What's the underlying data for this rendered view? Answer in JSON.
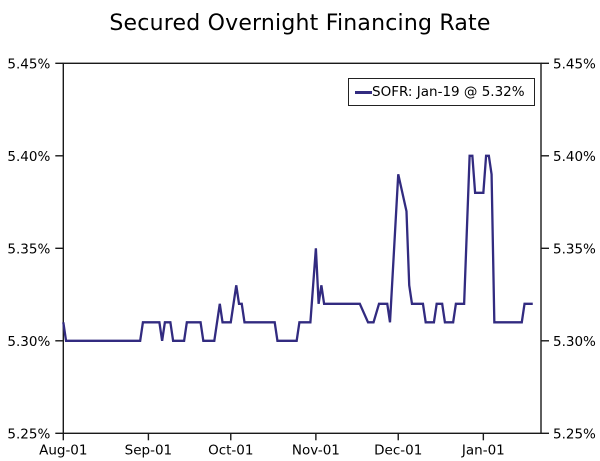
{
  "chart_data": {
    "type": "line",
    "title": "Secured Overnight Financing Rate",
    "legend": {
      "position": "top-right",
      "label": "SOFR: Jan-19 @ 5.32%"
    },
    "grid": false,
    "x_axis": {
      "label": "",
      "start_date": "2023-08-01",
      "end_date": "2024-01-22",
      "ticks": [
        {
          "label": "Aug-01",
          "date": "2023-08-01"
        },
        {
          "label": "Sep-01",
          "date": "2023-09-01"
        },
        {
          "label": "Oct-01",
          "date": "2023-10-01"
        },
        {
          "label": "Nov-01",
          "date": "2023-11-01"
        },
        {
          "label": "Dec-01",
          "date": "2023-12-01"
        },
        {
          "label": "Jan-01",
          "date": "2024-01-01"
        }
      ]
    },
    "y_axis": {
      "label": "",
      "min": 5.25,
      "max": 5.45,
      "unit": "%",
      "label_sides": "both",
      "ticks": [
        {
          "label": "5.45%",
          "value": 5.45
        },
        {
          "label": "5.40%",
          "value": 5.4
        },
        {
          "label": "5.35%",
          "value": 5.35
        },
        {
          "label": "5.30%",
          "value": 5.3
        },
        {
          "label": "5.25%",
          "value": 5.25
        }
      ]
    },
    "series": [
      {
        "name": "SOFR",
        "last_point_note": "Jan-19 @ 5.32%",
        "color": "#322b80",
        "points": [
          [
            "2023-08-01",
            5.31
          ],
          [
            "2023-08-02",
            5.3
          ],
          [
            "2023-08-29",
            5.3
          ],
          [
            "2023-08-30",
            5.31
          ],
          [
            "2023-09-05",
            5.31
          ],
          [
            "2023-09-06",
            5.3
          ],
          [
            "2023-09-07",
            5.31
          ],
          [
            "2023-09-09",
            5.31
          ],
          [
            "2023-09-10",
            5.3
          ],
          [
            "2023-09-14",
            5.3
          ],
          [
            "2023-09-15",
            5.31
          ],
          [
            "2023-09-20",
            5.31
          ],
          [
            "2023-09-21",
            5.3
          ],
          [
            "2023-09-25",
            5.3
          ],
          [
            "2023-09-27",
            5.32
          ],
          [
            "2023-09-28",
            5.31
          ],
          [
            "2023-10-01",
            5.31
          ],
          [
            "2023-10-03",
            5.33
          ],
          [
            "2023-10-04",
            5.32
          ],
          [
            "2023-10-05",
            5.32
          ],
          [
            "2023-10-06",
            5.31
          ],
          [
            "2023-10-17",
            5.31
          ],
          [
            "2023-10-18",
            5.3
          ],
          [
            "2023-10-25",
            5.3
          ],
          [
            "2023-10-26",
            5.31
          ],
          [
            "2023-10-30",
            5.31
          ],
          [
            "2023-11-01",
            5.35
          ],
          [
            "2023-11-02",
            5.32
          ],
          [
            "2023-11-03",
            5.33
          ],
          [
            "2023-11-04",
            5.32
          ],
          [
            "2023-11-17",
            5.32
          ],
          [
            "2023-11-20",
            5.31
          ],
          [
            "2023-11-22",
            5.31
          ],
          [
            "2023-11-24",
            5.32
          ],
          [
            "2023-11-27",
            5.32
          ],
          [
            "2023-11-28",
            5.31
          ],
          [
            "2023-12-01",
            5.39
          ],
          [
            "2023-12-04",
            5.37
          ],
          [
            "2023-12-05",
            5.33
          ],
          [
            "2023-12-06",
            5.32
          ],
          [
            "2023-12-10",
            5.32
          ],
          [
            "2023-12-11",
            5.31
          ],
          [
            "2023-12-14",
            5.31
          ],
          [
            "2023-12-15",
            5.32
          ],
          [
            "2023-12-17",
            5.32
          ],
          [
            "2023-12-18",
            5.31
          ],
          [
            "2023-12-21",
            5.31
          ],
          [
            "2023-12-22",
            5.32
          ],
          [
            "2023-12-25",
            5.32
          ],
          [
            "2023-12-27",
            5.4
          ],
          [
            "2023-12-28",
            5.4
          ],
          [
            "2023-12-29",
            5.38
          ],
          [
            "2024-01-01",
            5.38
          ],
          [
            "2024-01-02",
            5.4
          ],
          [
            "2024-01-03",
            5.4
          ],
          [
            "2024-01-04",
            5.39
          ],
          [
            "2024-01-05",
            5.31
          ],
          [
            "2024-01-15",
            5.31
          ],
          [
            "2024-01-16",
            5.32
          ],
          [
            "2024-01-19",
            5.32
          ]
        ]
      }
    ],
    "colors": {
      "axis": "#1a1a1a",
      "text": "#000000",
      "background": "#ffffff"
    }
  }
}
